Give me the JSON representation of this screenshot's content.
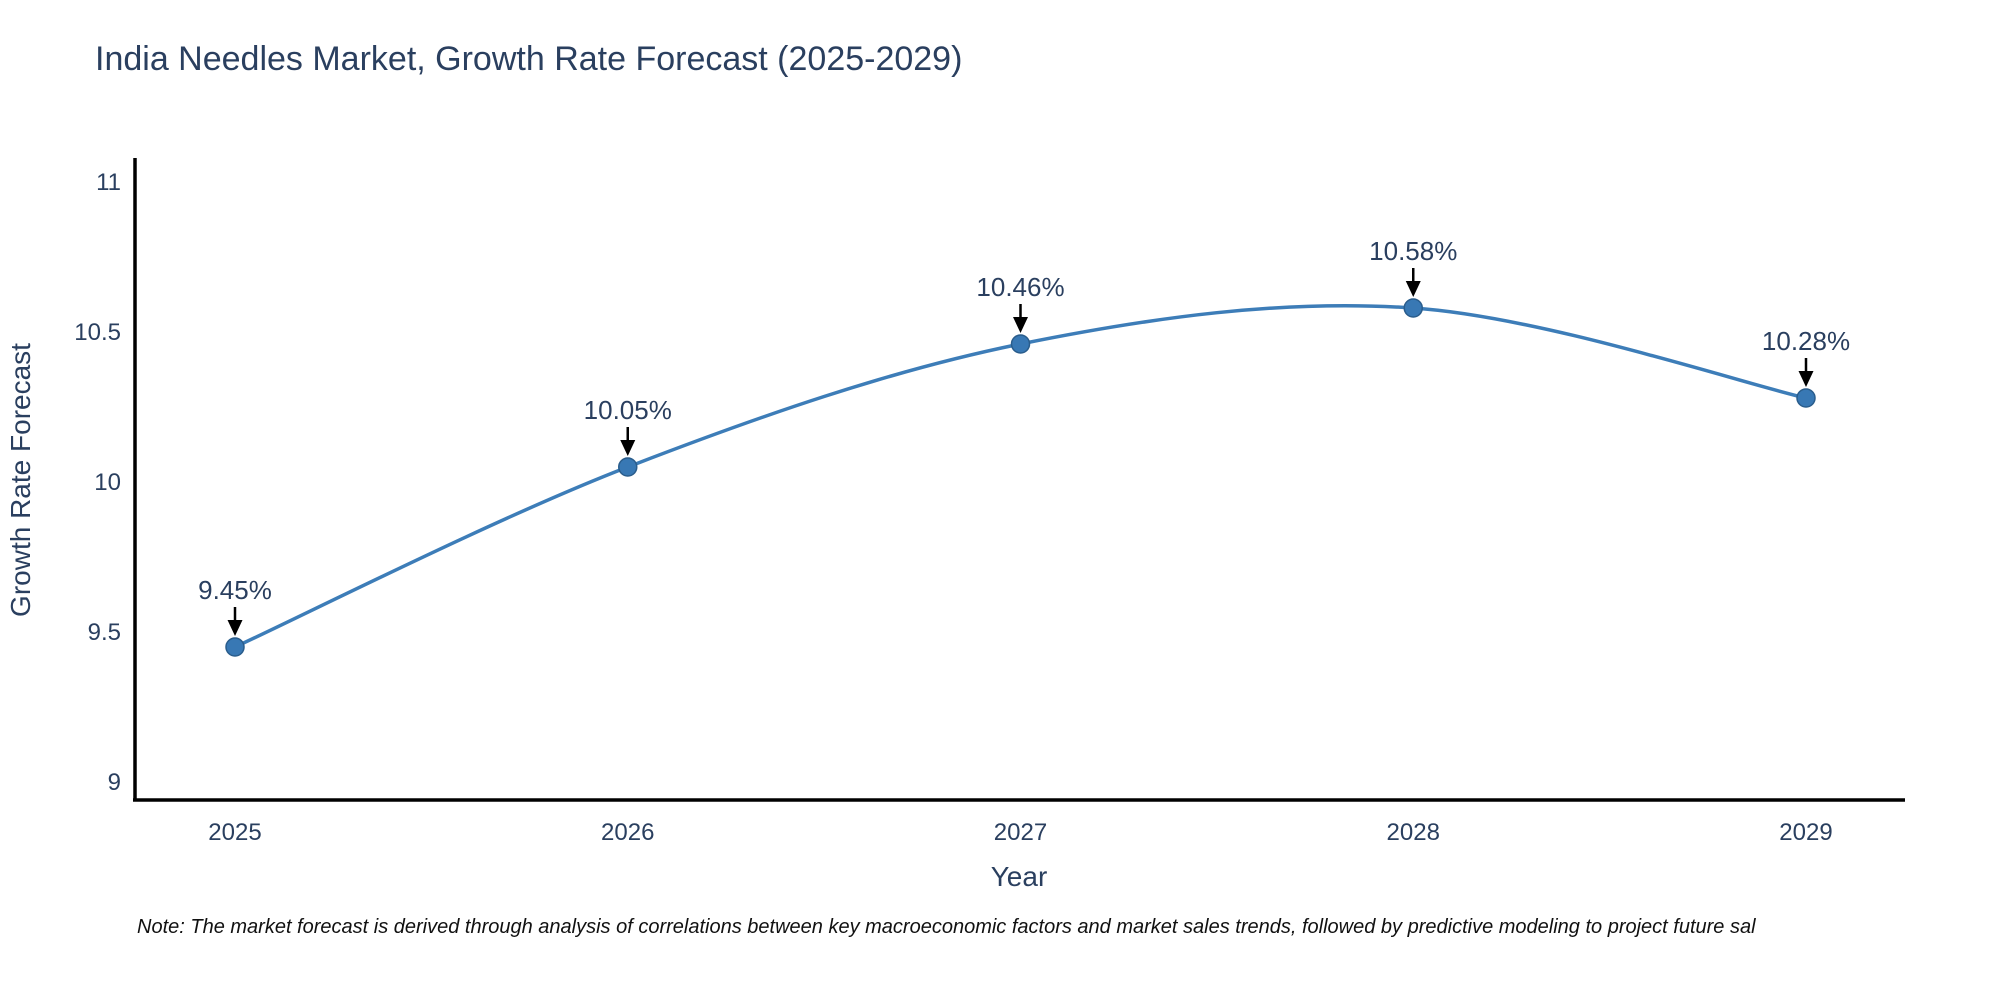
{
  "chart_data": {
    "type": "line",
    "title": "India Needles Market, Growth Rate Forecast (2025-2029)",
    "xlabel": "Year",
    "ylabel": "Growth Rate Forecast",
    "x": [
      2025,
      2026,
      2027,
      2028,
      2029
    ],
    "values": [
      9.45,
      10.05,
      10.46,
      10.58,
      10.28
    ],
    "point_labels": [
      "9.45%",
      "10.05%",
      "10.46%",
      "10.58%",
      "10.28%"
    ],
    "ylim": [
      9,
      11
    ],
    "yticks": [
      9,
      9.5,
      10,
      10.5,
      11
    ],
    "ytick_labels": [
      "9",
      "9.5",
      "10",
      "10.5",
      "11"
    ],
    "xtick_labels": [
      "2025",
      "2026",
      "2027",
      "2028",
      "2029"
    ],
    "grid": false,
    "legend": "none",
    "line_shape": "spline",
    "note": "Note: The market forecast is derived through analysis of correlations between key macroeconomic factors and market sales trends, followed by predictive modeling to project future sal",
    "colors": {
      "line": "#3d7db8",
      "marker_fill": "#3878b4",
      "marker_stroke": "#2a5d8c",
      "axis_line": "#000000",
      "text": "#2a3f5f",
      "annotation_arrow": "#000000",
      "background": "#ffffff",
      "title": "#2a3f5f"
    }
  }
}
